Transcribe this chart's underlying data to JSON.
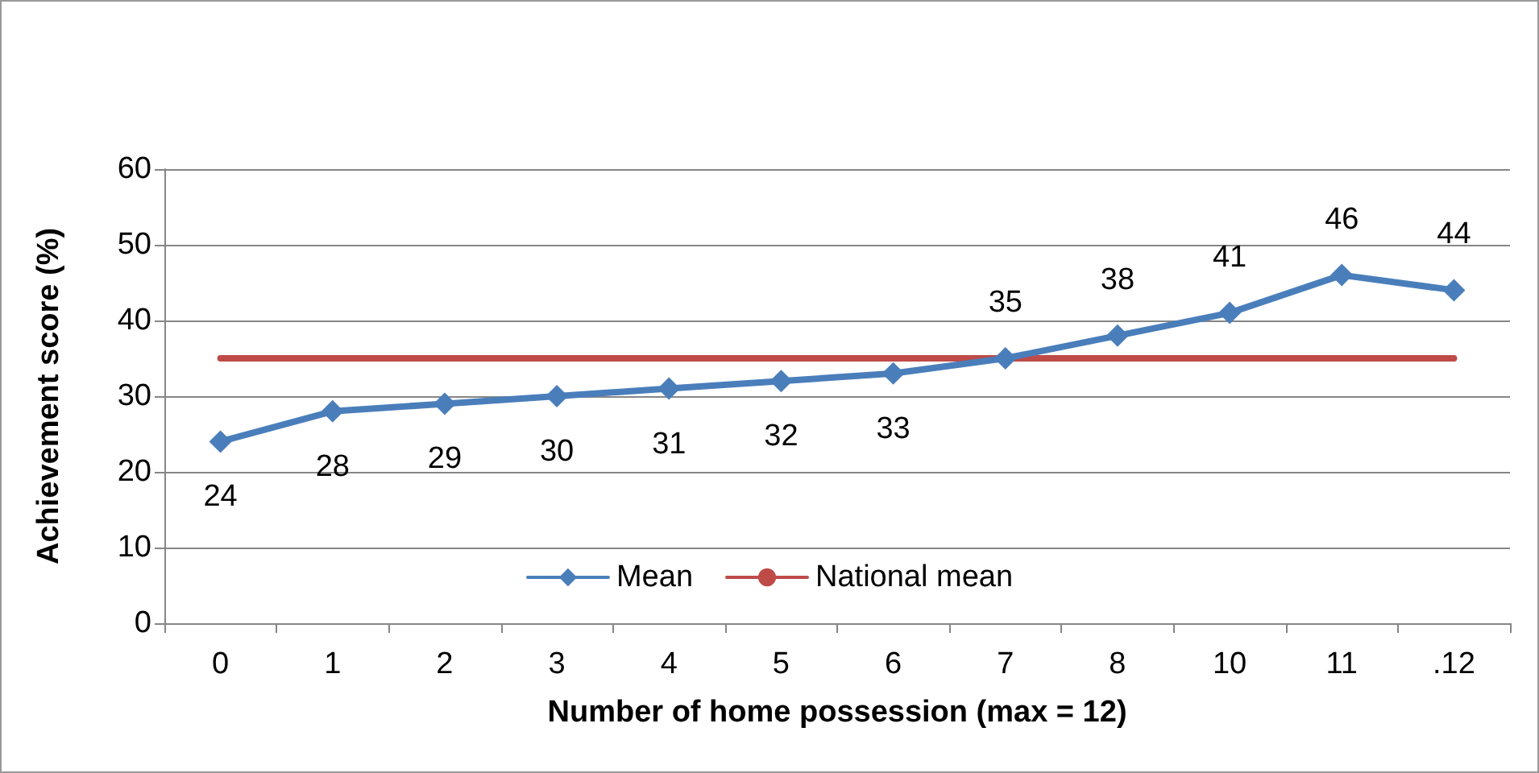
{
  "chart_data": {
    "type": "line",
    "xlabel": "Number of home possession (max = 12)",
    "ylabel": "Achievement score (%)",
    "categories": [
      "0",
      "1",
      "2",
      "3",
      "4",
      "5",
      "6",
      "7",
      "8",
      "10",
      "11",
      ".12"
    ],
    "series": [
      {
        "name": "Mean",
        "color": "#4a7ebb",
        "marker": "diamond",
        "values": [
          24,
          28,
          29,
          30,
          31,
          32,
          33,
          35,
          38,
          41,
          46,
          44
        ],
        "value_labels": [
          "24",
          "28",
          "29",
          "30",
          "31",
          "32",
          "33",
          "35",
          "38",
          "41",
          "46",
          "44"
        ]
      },
      {
        "name": "National mean",
        "color": "#be4b48",
        "marker": "none",
        "values": [
          35,
          35,
          35,
          35,
          35,
          35,
          35,
          35,
          35,
          35,
          35,
          35
        ]
      }
    ],
    "ylim": [
      0,
      60
    ],
    "yticks": [
      0,
      10,
      20,
      30,
      40,
      50,
      60
    ],
    "grid": "y",
    "legend": "bottom"
  }
}
